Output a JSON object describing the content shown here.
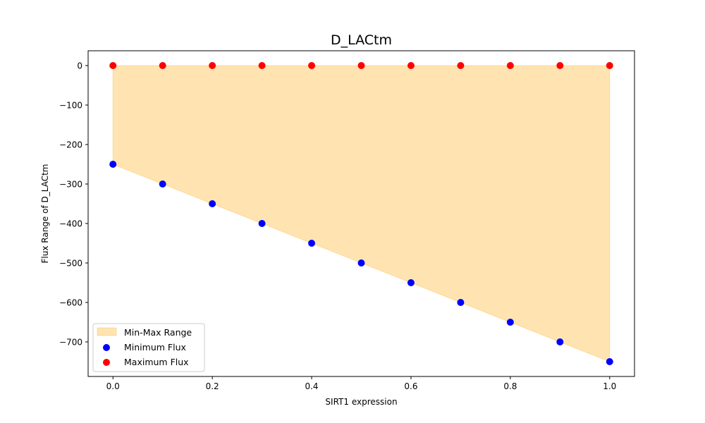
{
  "chart_data": {
    "type": "scatter",
    "title": "D_LACtm",
    "xlabel": "SIRT1 expression",
    "ylabel": "Flux Range of D_LACtm",
    "xlim": [
      -0.05,
      1.05
    ],
    "ylim": [
      -787.5,
      37.5
    ],
    "x_ticks": [
      0.0,
      0.2,
      0.4,
      0.6,
      0.8,
      1.0
    ],
    "x_tick_labels": [
      "0.0",
      "0.2",
      "0.4",
      "0.6",
      "0.8",
      "1.0"
    ],
    "y_ticks": [
      0,
      -100,
      -200,
      -300,
      -400,
      -500,
      -600,
      -700
    ],
    "y_tick_labels": [
      "0",
      "−100",
      "−200",
      "−300",
      "−400",
      "−500",
      "−600",
      "−700"
    ],
    "x": [
      0.0,
      0.1,
      0.2,
      0.3,
      0.4,
      0.5,
      0.6,
      0.7,
      0.8,
      0.9,
      1.0
    ],
    "series": [
      {
        "name": "Minimum Flux",
        "color": "#0000ff",
        "values": [
          -250,
          -300,
          -350,
          -400,
          -450,
          -500,
          -550,
          -600,
          -650,
          -700,
          -750
        ]
      },
      {
        "name": "Maximum Flux",
        "color": "#ff0000",
        "values": [
          0,
          0,
          0,
          0,
          0,
          0,
          0,
          0,
          0,
          0,
          0
        ]
      }
    ],
    "fill": {
      "name": "Min-Max Range",
      "color": "#ffa500",
      "alpha": 0.3
    },
    "grid": false,
    "legend_position": "lower-left"
  }
}
